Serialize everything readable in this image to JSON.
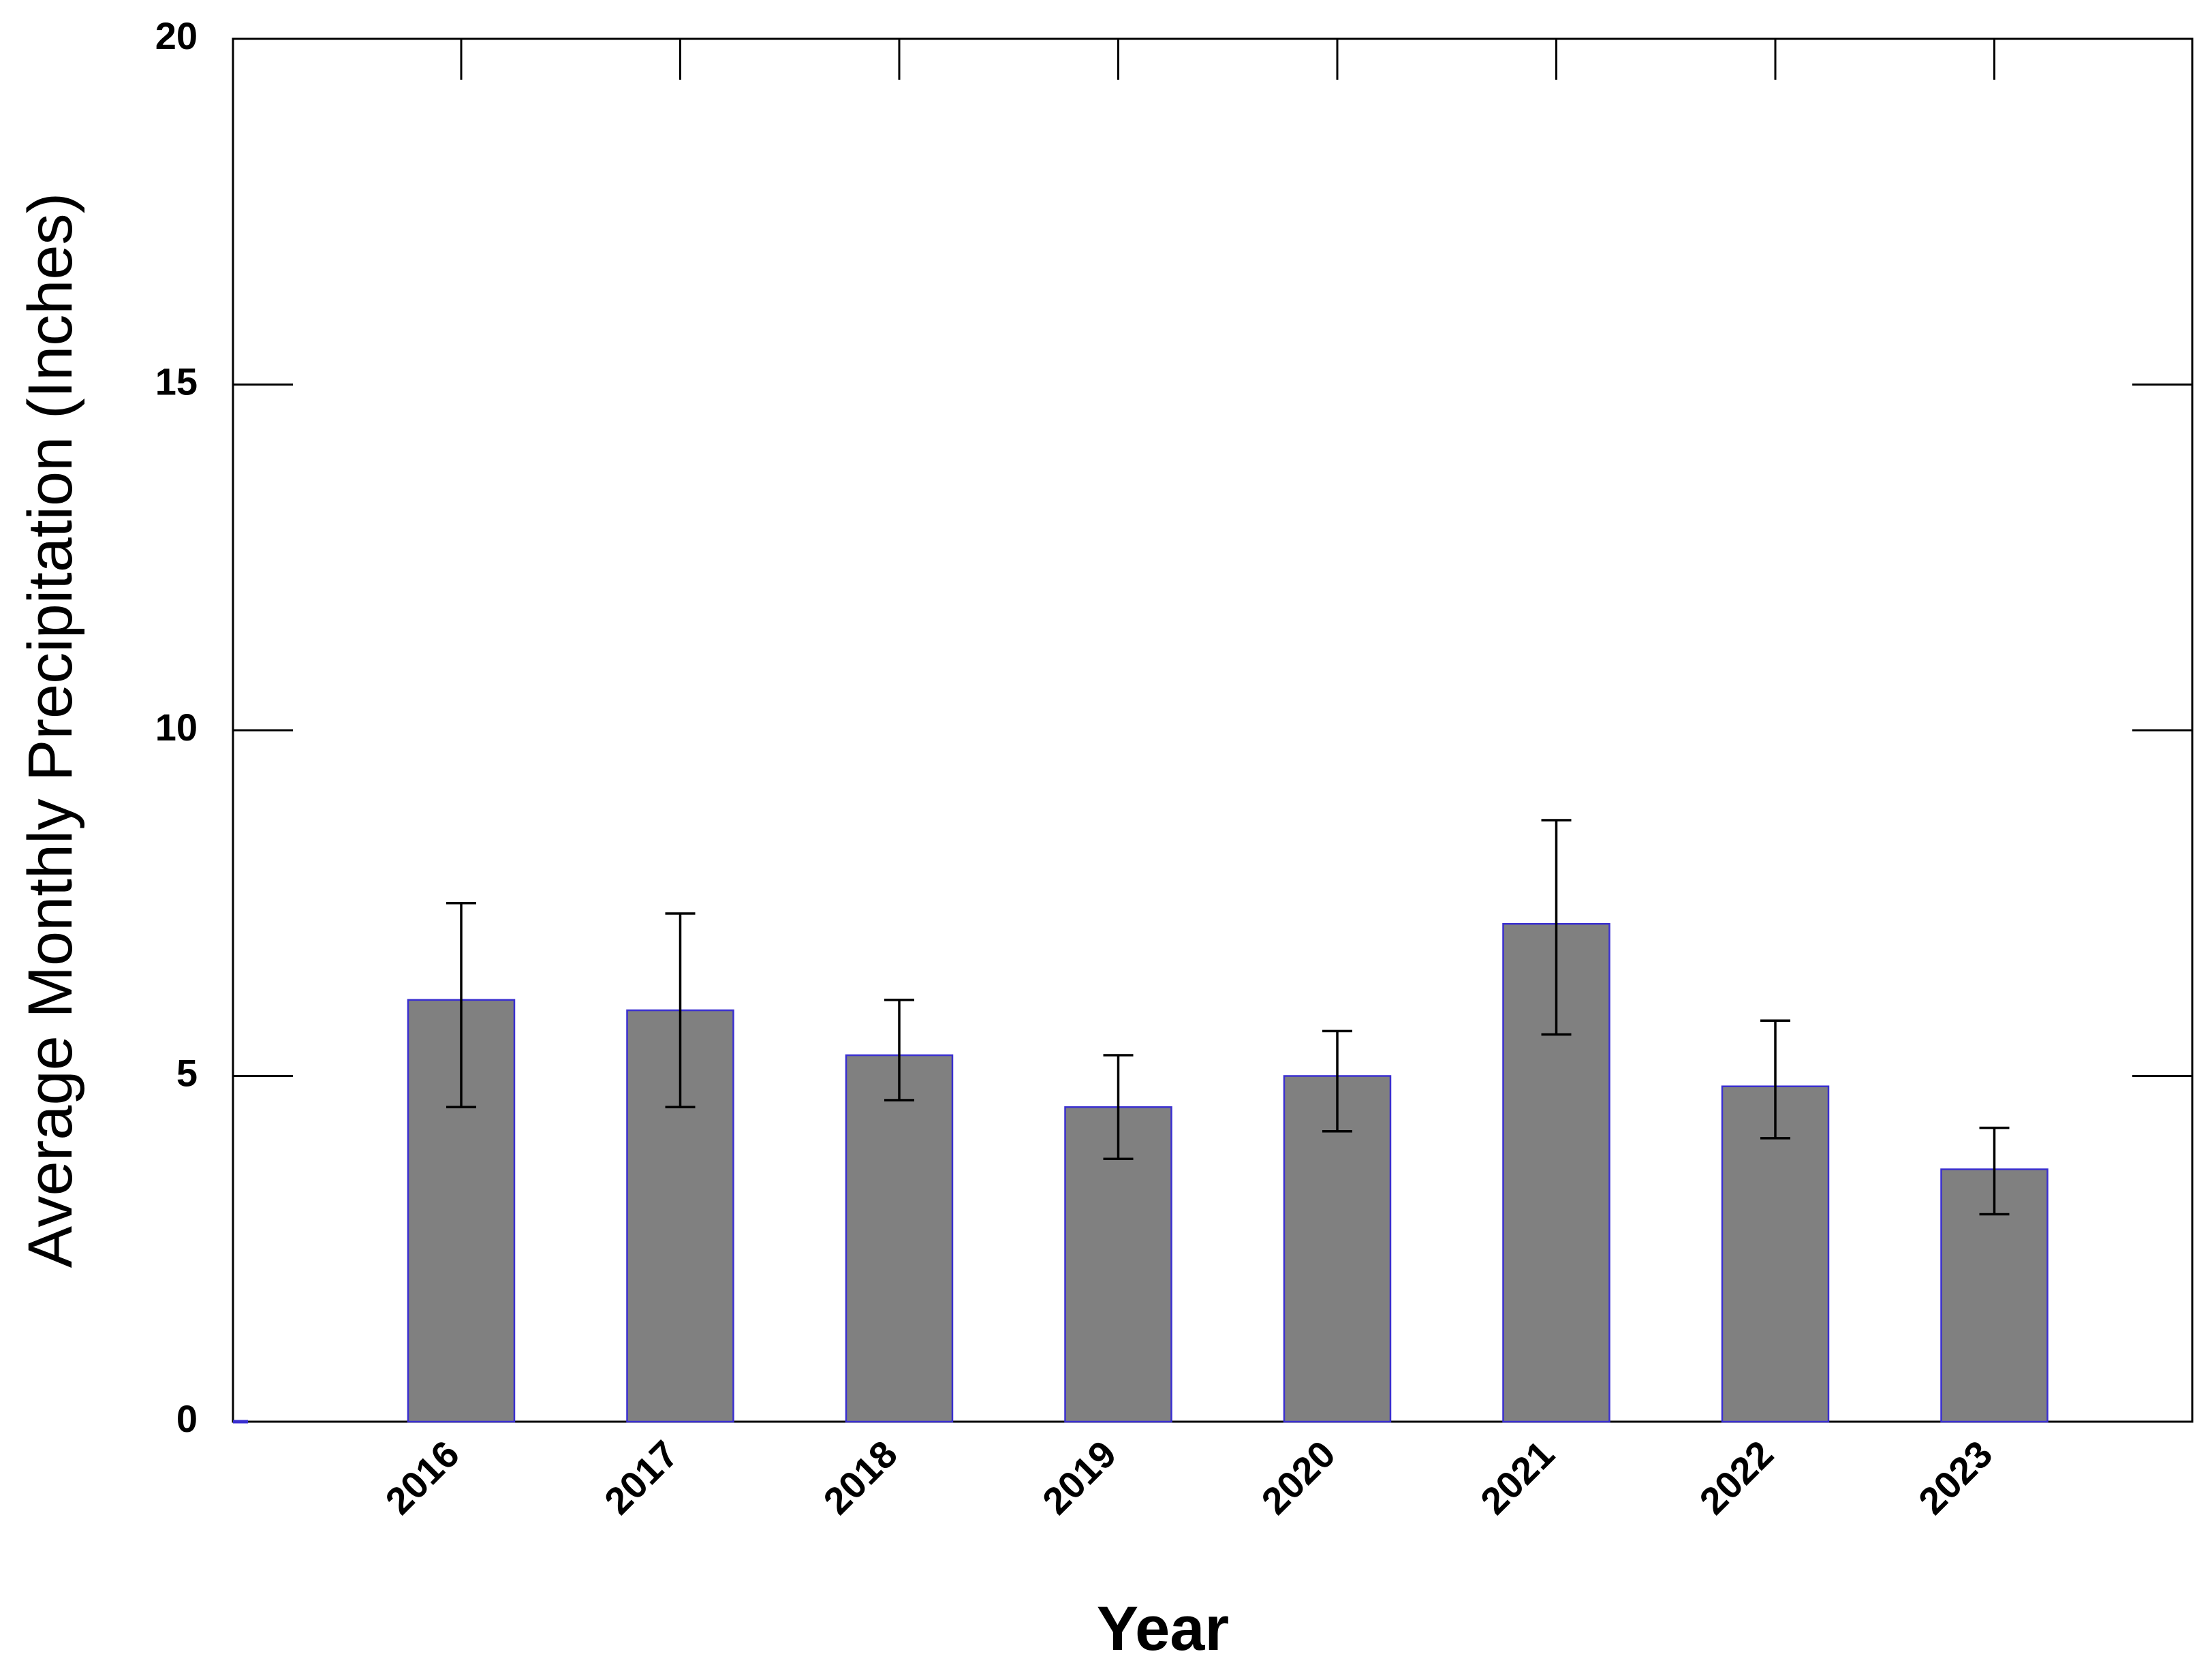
{
  "chart_data": {
    "type": "bar",
    "title": "",
    "xlabel": "Year",
    "ylabel": "Average Monthly Precipitation (Inches)",
    "categories": [
      "2016",
      "2017",
      "2018",
      "2019",
      "2020",
      "2021",
      "2022",
      "2023"
    ],
    "series": [
      {
        "values": [
          6.1,
          5.95,
          5.3,
          4.55,
          5.0,
          7.2,
          4.85,
          3.65
        ],
        "error_lower": [
          4.55,
          4.55,
          4.65,
          3.8,
          4.2,
          5.6,
          4.1,
          3.0
        ],
        "error_upper": [
          7.5,
          7.35,
          6.1,
          5.3,
          5.65,
          8.7,
          5.8,
          4.25
        ]
      }
    ],
    "ylim": [
      0,
      20
    ],
    "yticks": [
      0,
      5,
      10,
      15,
      20
    ],
    "grid": false,
    "legend": "none",
    "colors": {
      "bar_fill": "#808080",
      "bar_stroke": "#3a2fd0",
      "axis": "#000000",
      "error_bar": "#000000"
    }
  }
}
